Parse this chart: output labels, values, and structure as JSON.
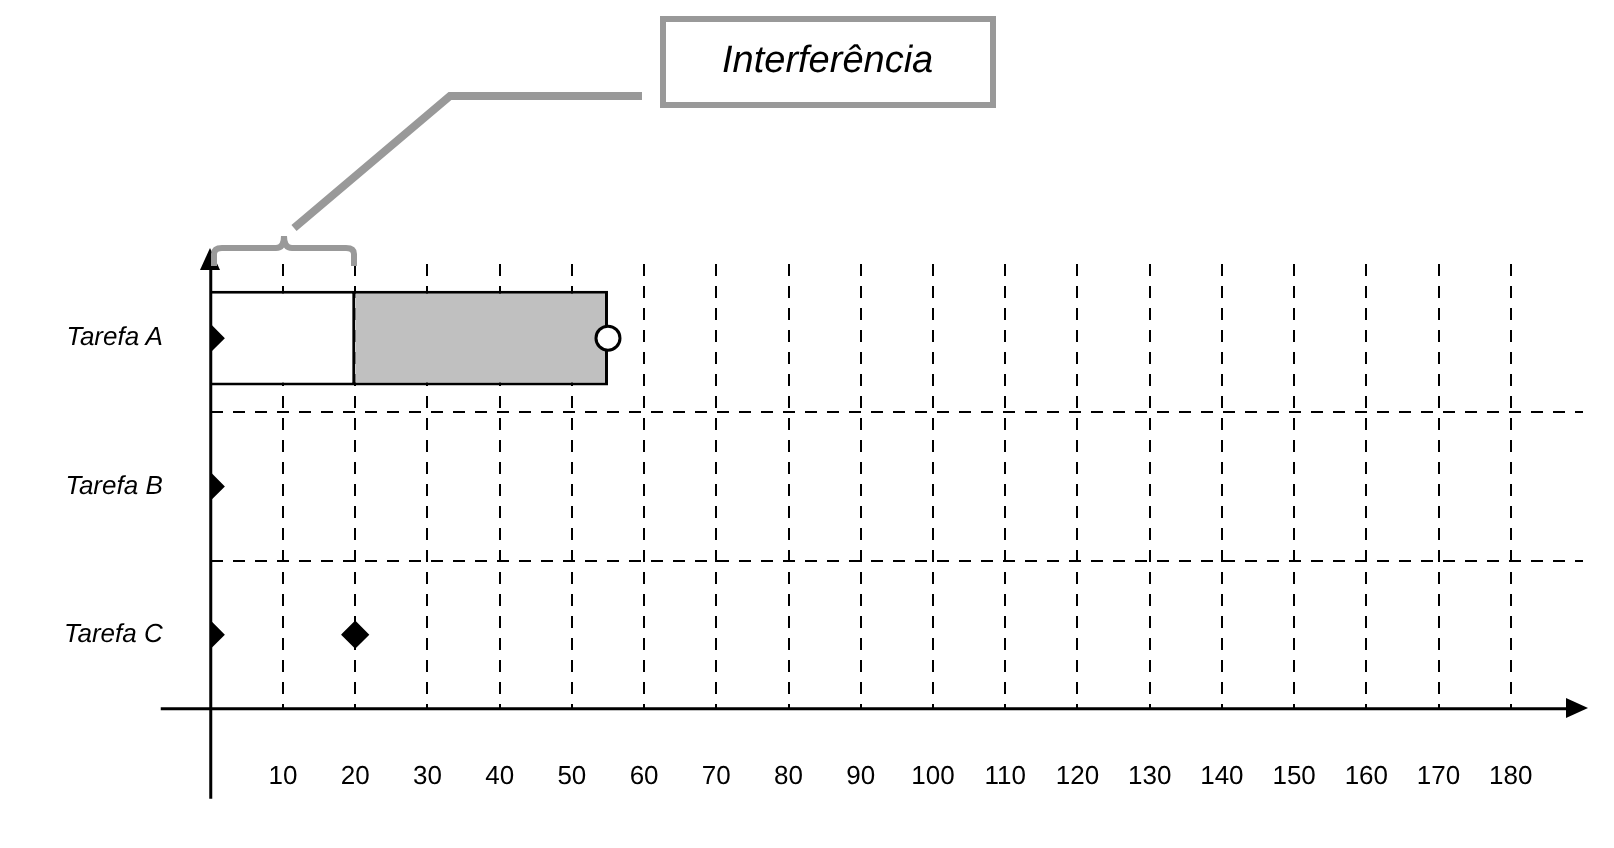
{
  "chart_data": {
    "type": "bar",
    "orientation": "horizontal",
    "stacked": true,
    "categories": [
      "Tarefa A",
      "Tarefa B",
      "Tarefa C"
    ],
    "series": [
      {
        "color": "#ffffff",
        "values": [
          20,
          null,
          null
        ]
      },
      {
        "color": "#c0c0c0",
        "values": [
          35,
          null,
          null
        ]
      },
      {
        "type": "scatter",
        "color": "#000000",
        "marker": "diamond",
        "values": [
          0,
          0,
          0
        ]
      },
      {
        "type": "scatter",
        "color": "#000000",
        "marker": "diamond",
        "values": [
          null,
          null,
          20
        ]
      },
      {
        "type": "scatter",
        "color": "#ffffff",
        "marker": "circle",
        "values": [
          55,
          null,
          null
        ]
      }
    ],
    "xlim": [
      0,
      190
    ],
    "xticks": [
      10,
      20,
      30,
      40,
      50,
      60,
      70,
      80,
      90,
      100,
      110,
      120,
      130,
      140,
      150,
      160,
      170,
      180
    ],
    "grid": true,
    "legend": false,
    "annotations": [
      "Interferência"
    ]
  }
}
